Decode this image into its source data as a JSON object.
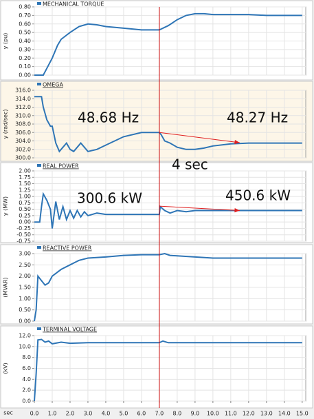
{
  "chart_data": [
    {
      "type": "line",
      "title": "MECHANICAL TORQUE",
      "y_label": "y (pu)",
      "background": "#ffffff",
      "grid": true,
      "xlim": [
        0,
        15.2
      ],
      "ylim": [
        0,
        0.8
      ],
      "yticks": [
        {
          "value": 0,
          "label": "0.00"
        },
        {
          "value": 0.1,
          "label": "0.10"
        },
        {
          "value": 0.2,
          "label": "0.20"
        },
        {
          "value": 0.3,
          "label": "0.30"
        },
        {
          "value": 0.4,
          "label": "0.40"
        },
        {
          "value": 0.5,
          "label": "0.50"
        },
        {
          "value": 0.6,
          "label": "0.60"
        },
        {
          "value": 0.7,
          "label": "0.70"
        },
        {
          "value": 0.8,
          "label": "0.80"
        }
      ],
      "x": [
        0,
        0.5,
        0.8,
        1.0,
        1.3,
        1.5,
        2.0,
        2.5,
        3.0,
        3.5,
        4.0,
        5.0,
        6.0,
        7.0,
        7.5,
        8.0,
        8.5,
        9.0,
        9.5,
        10,
        11,
        12,
        13,
        14,
        15
      ],
      "series": [
        {
          "color": "#2e75b6",
          "values": [
            0,
            0,
            0.12,
            0.2,
            0.35,
            0.42,
            0.5,
            0.57,
            0.6,
            0.59,
            0.57,
            0.55,
            0.53,
            0.53,
            0.58,
            0.65,
            0.7,
            0.72,
            0.72,
            0.71,
            0.71,
            0.71,
            0.7,
            0.7,
            0.7
          ]
        }
      ]
    },
    {
      "type": "line",
      "title": "OMEGA",
      "y_label": "y (rad/sec)",
      "background": "#fdf6e8",
      "grid": true,
      "xlim": [
        0,
        15.2
      ],
      "ylim": [
        300,
        316
      ],
      "yticks": [
        {
          "value": 300,
          "label": "300.0"
        },
        {
          "value": 302,
          "label": "302.0"
        },
        {
          "value": 304,
          "label": "304.0"
        },
        {
          "value": 306,
          "label": "306.0"
        },
        {
          "value": 308,
          "label": "308.0"
        },
        {
          "value": 310,
          "label": "310.0"
        },
        {
          "value": 312,
          "label": "312.0"
        },
        {
          "value": 314,
          "label": "314.0"
        },
        {
          "value": 316,
          "label": "316.0"
        }
      ],
      "x": [
        0,
        0.4,
        0.5,
        0.7,
        0.9,
        1.0,
        1.2,
        1.4,
        1.6,
        1.8,
        2.0,
        2.2,
        2.4,
        2.6,
        2.8,
        3.0,
        3.5,
        4.0,
        5.0,
        6.0,
        7.0,
        7.1,
        7.3,
        7.6,
        8.0,
        8.5,
        9.0,
        9.5,
        10,
        11,
        12,
        13,
        14,
        15
      ],
      "series": [
        {
          "color": "#2e75b6",
          "values": [
            314.5,
            314.5,
            312,
            309,
            307.5,
            307.5,
            303.5,
            301.5,
            302.5,
            303.5,
            302,
            301.5,
            302.5,
            303.5,
            302.5,
            301.5,
            302,
            303,
            305,
            306,
            306,
            305.5,
            304,
            303.5,
            302.5,
            302,
            302,
            302.3,
            302.8,
            303.3,
            303.5,
            303.5,
            303.5,
            303.5
          ]
        }
      ],
      "annotations": [
        "48.68 Hz",
        "48.27 Hz"
      ],
      "arrows": [
        {
          "color": "#e02020",
          "from": [
            7,
            306
          ],
          "to": [
            11.5,
            303.6
          ]
        }
      ]
    },
    {
      "type": "line",
      "title": "REAL POWER",
      "y_label": "y (MW)",
      "background": "#ffffff",
      "grid": true,
      "xlim": [
        0,
        15.2
      ],
      "ylim": [
        -0.75,
        2
      ],
      "yticks": [
        {
          "value": -0.75,
          "label": "-0.75"
        },
        {
          "value": -0.5,
          "label": "-0.50"
        },
        {
          "value": -0.25,
          "label": "-0.25"
        },
        {
          "value": 0,
          "label": "0.00"
        },
        {
          "value": 0.25,
          "label": "0.25"
        },
        {
          "value": 0.5,
          "label": "0.50"
        },
        {
          "value": 0.75,
          "label": "0.75"
        },
        {
          "value": 1,
          "label": "1.00"
        },
        {
          "value": 1.25,
          "label": "1.25"
        },
        {
          "value": 1.5,
          "label": "1.50"
        },
        {
          "value": 1.75,
          "label": "1.75"
        },
        {
          "value": 2,
          "label": "2.00"
        }
      ],
      "x": [
        0,
        0.3,
        0.4,
        0.5,
        0.7,
        0.9,
        1.0,
        1.2,
        1.4,
        1.6,
        1.8,
        2.0,
        2.2,
        2.4,
        2.6,
        2.8,
        3.0,
        3.5,
        4,
        5,
        6,
        7,
        7.05,
        7.3,
        7.6,
        8,
        8.5,
        9,
        10,
        11,
        12,
        13,
        14,
        15
      ],
      "series": [
        {
          "color": "#2e75b6",
          "values": [
            0,
            0,
            0.6,
            1.1,
            0.85,
            0.5,
            -0.25,
            0.8,
            0.1,
            0.6,
            0.1,
            0.45,
            0.15,
            0.45,
            0.2,
            0.4,
            0.25,
            0.35,
            0.3,
            0.3,
            0.3,
            0.3,
            0.6,
            0.45,
            0.35,
            0.45,
            0.4,
            0.45,
            0.45,
            0.45,
            0.45,
            0.45,
            0.45,
            0.45
          ]
        }
      ],
      "annotations": [
        "300.6 kW",
        "450.6 kW",
        "4 sec"
      ],
      "arrows": [
        {
          "color": "#e02020",
          "from": [
            7,
            0.62
          ],
          "to": [
            11.5,
            0.45
          ]
        }
      ]
    },
    {
      "type": "line",
      "title": "REACTIVE POWER",
      "y_label": "(MVAR)",
      "background": "#ffffff",
      "grid": true,
      "xlim": [
        0,
        15.2
      ],
      "ylim": [
        0,
        3
      ],
      "yticks": [
        {
          "value": 0,
          "label": "0.00"
        },
        {
          "value": 0.5,
          "label": "0.50"
        },
        {
          "value": 1,
          "label": "1.00"
        },
        {
          "value": 1.5,
          "label": "1.50"
        },
        {
          "value": 2,
          "label": "2.00"
        },
        {
          "value": 2.5,
          "label": "2.50"
        },
        {
          "value": 3,
          "label": "3.00"
        }
      ],
      "x": [
        0,
        0.1,
        0.2,
        0.4,
        0.6,
        0.8,
        1.0,
        1.5,
        2,
        2.5,
        3,
        4,
        5,
        6,
        7,
        7.3,
        7.6,
        8,
        9,
        10,
        11,
        12,
        13,
        14,
        15
      ],
      "series": [
        {
          "color": "#2e75b6",
          "values": [
            0,
            0.5,
            2.0,
            1.8,
            1.6,
            1.7,
            2.0,
            2.3,
            2.5,
            2.7,
            2.8,
            2.85,
            2.92,
            2.95,
            2.95,
            3.0,
            2.92,
            2.9,
            2.85,
            2.8,
            2.8,
            2.8,
            2.8,
            2.8,
            2.8
          ]
        }
      ]
    },
    {
      "type": "line",
      "title": "TERMINAL VOLTAGE",
      "y_label": "(kV)",
      "x_label": "sec",
      "background": "#ffffff",
      "grid": true,
      "xlim": [
        0,
        15.2
      ],
      "ylim": [
        0,
        12
      ],
      "yticks": [
        {
          "value": 0,
          "label": "0.0"
        },
        {
          "value": 2,
          "label": "2.0"
        },
        {
          "value": 4,
          "label": "4.0"
        },
        {
          "value": 6,
          "label": "6.0"
        },
        {
          "value": 8,
          "label": "8.0"
        },
        {
          "value": 10,
          "label": "10.0"
        },
        {
          "value": 12,
          "label": "12.0"
        }
      ],
      "xticks": [
        {
          "value": 0,
          "label": "0.0"
        },
        {
          "value": 1,
          "label": "1.0"
        },
        {
          "value": 2,
          "label": "2.0"
        },
        {
          "value": 3,
          "label": "3.0"
        },
        {
          "value": 4,
          "label": "4.0"
        },
        {
          "value": 5,
          "label": "5.0"
        },
        {
          "value": 6,
          "label": "6.0"
        },
        {
          "value": 7,
          "label": "7.0"
        },
        {
          "value": 8,
          "label": "8.0"
        },
        {
          "value": 9,
          "label": "9.0"
        },
        {
          "value": 10,
          "label": "10.0"
        },
        {
          "value": 11,
          "label": "11.0"
        },
        {
          "value": 12,
          "label": "12.0"
        },
        {
          "value": 13,
          "label": "13.0"
        },
        {
          "value": 14,
          "label": "14.0"
        },
        {
          "value": 15,
          "label": "15.0"
        }
      ],
      "x": [
        0,
        0.1,
        0.2,
        0.4,
        0.6,
        0.8,
        1.0,
        1.5,
        2,
        3,
        4,
        5,
        6,
        7,
        7.2,
        7.5,
        8,
        9,
        10,
        12,
        15
      ],
      "series": [
        {
          "color": "#2e75b6",
          "values": [
            0,
            5,
            11.2,
            11.3,
            10.8,
            11.0,
            10.5,
            10.8,
            10.6,
            10.7,
            10.7,
            10.7,
            10.7,
            10.7,
            11.0,
            10.7,
            10.7,
            10.7,
            10.7,
            10.7,
            10.7
          ]
        }
      ],
      "event_line": {
        "x": 7,
        "color": "#cc0000"
      }
    }
  ]
}
